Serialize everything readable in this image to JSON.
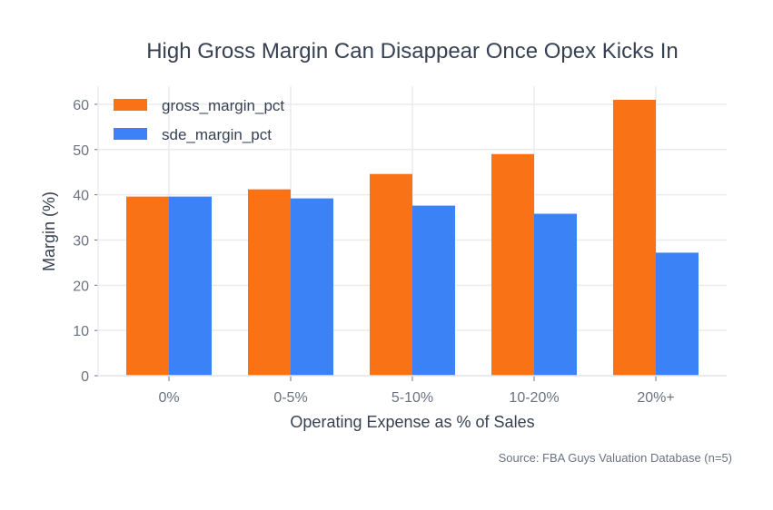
{
  "chart_data": {
    "type": "bar",
    "title": "High Gross Margin Can Disappear Once Opex Kicks In",
    "xlabel": "Operating Expense as % of Sales",
    "ylabel": "Margin (%)",
    "categories": [
      "0%",
      "0-5%",
      "5-10%",
      "10-20%",
      "20%+"
    ],
    "series": [
      {
        "name": "gross_margin_pct",
        "color": "#f97316",
        "values": [
          39.6,
          41.2,
          44.6,
          49.0,
          61.0
        ]
      },
      {
        "name": "sde_margin_pct",
        "color": "#3b82f6",
        "values": [
          39.6,
          39.2,
          37.6,
          35.8,
          27.2
        ]
      }
    ],
    "ylim": [
      0,
      64
    ],
    "yticks": [
      0,
      10,
      20,
      30,
      40,
      50,
      60
    ],
    "grid": true,
    "legend_position": "top-left",
    "source": "Source: FBA Guys Valuation Database (n=5)"
  }
}
